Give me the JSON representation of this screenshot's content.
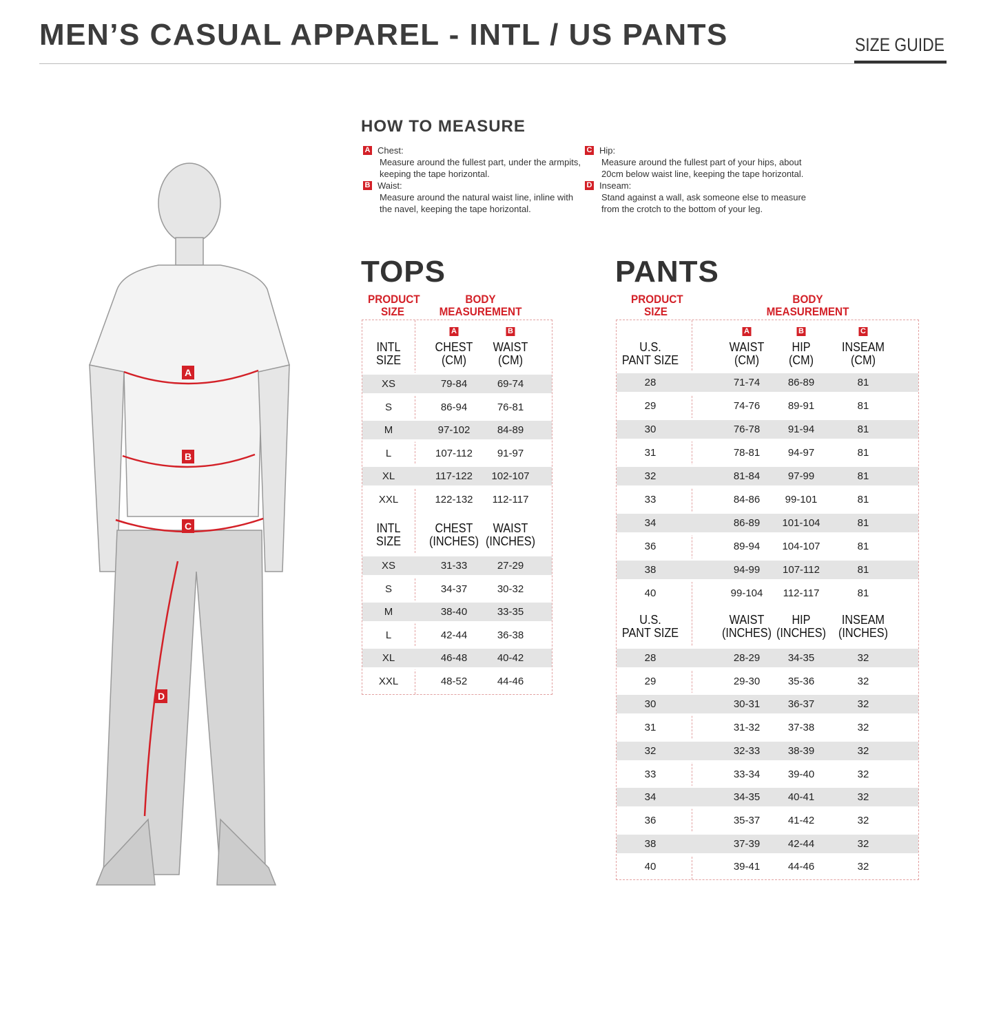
{
  "header": {
    "title": "MEN’S CASUAL APPAREL - INTL / US PANTS",
    "size_guide": "SIZE GUIDE"
  },
  "how_to_measure": {
    "title": "HOW TO MEASURE",
    "items": [
      {
        "key": "A",
        "label": "Chest:",
        "desc": "Measure around the fullest part, under the armpits, keeping the tape horizontal."
      },
      {
        "key": "B",
        "label": "Waist:",
        "desc": "Measure around the natural waist line, inline with the navel, keeping the tape horizontal."
      },
      {
        "key": "C",
        "label": "Hip:",
        "desc": "Measure around the fullest part of your hips, about 20cm below waist line, keeping the tape horizontal."
      },
      {
        "key": "D",
        "label": "Inseam:",
        "desc": "Stand against a wall, ask someone else to measure from the crotch to the bottom of your leg."
      }
    ]
  },
  "figure": {
    "markers": [
      "A",
      "B",
      "C",
      "D"
    ]
  },
  "colors": {
    "accent": "#d32027",
    "shade": "#e4e4e4"
  },
  "tops": {
    "title": "TOPS",
    "product_size": "PRODUCT\nSIZE",
    "body_measurement": "BODY\nMEASUREMENT",
    "cm": {
      "headers": [
        "INTL\nSIZE",
        "CHEST\n(CM)",
        "WAIST\n(CM)"
      ],
      "badges": [
        "A",
        "B"
      ],
      "rows": [
        [
          "XS",
          "79-84",
          "69-74"
        ],
        [
          "S",
          "86-94",
          "76-81"
        ],
        [
          "M",
          "97-102",
          "84-89"
        ],
        [
          "L",
          "107-112",
          "91-97"
        ],
        [
          "XL",
          "117-122",
          "102-107"
        ],
        [
          "XXL",
          "122-132",
          "112-117"
        ]
      ]
    },
    "inches": {
      "headers": [
        "INTL\nSIZE",
        "CHEST\n(INCHES)",
        "WAIST\n(INCHES)"
      ],
      "rows": [
        [
          "XS",
          "31-33",
          "27-29"
        ],
        [
          "S",
          "34-37",
          "30-32"
        ],
        [
          "M",
          "38-40",
          "33-35"
        ],
        [
          "L",
          "42-44",
          "36-38"
        ],
        [
          "XL",
          "46-48",
          "40-42"
        ],
        [
          "XXL",
          "48-52",
          "44-46"
        ]
      ]
    }
  },
  "pants": {
    "title": "PANTS",
    "product_size": "PRODUCT\nSIZE",
    "body_measurement": "BODY\nMEASUREMENT",
    "cm": {
      "headers": [
        "U.S.\nPANT SIZE",
        "WAIST\n(CM)",
        "HIP\n(CM)",
        "INSEAM\n(CM)"
      ],
      "badges": [
        "A",
        "B",
        "C"
      ],
      "rows": [
        [
          "28",
          "71-74",
          "86-89",
          "81"
        ],
        [
          "29",
          "74-76",
          "89-91",
          "81"
        ],
        [
          "30",
          "76-78",
          "91-94",
          "81"
        ],
        [
          "31",
          "78-81",
          "94-97",
          "81"
        ],
        [
          "32",
          "81-84",
          "97-99",
          "81"
        ],
        [
          "33",
          "84-86",
          "99-101",
          "81"
        ],
        [
          "34",
          "86-89",
          "101-104",
          "81"
        ],
        [
          "36",
          "89-94",
          "104-107",
          "81"
        ],
        [
          "38",
          "94-99",
          "107-112",
          "81"
        ],
        [
          "40",
          "99-104",
          "112-117",
          "81"
        ]
      ]
    },
    "inches": {
      "headers": [
        "U.S.\nPANT SIZE",
        "WAIST\n(INCHES)",
        "HIP\n(INCHES)",
        "INSEAM\n(INCHES)"
      ],
      "rows": [
        [
          "28",
          "28-29",
          "34-35",
          "32"
        ],
        [
          "29",
          "29-30",
          "35-36",
          "32"
        ],
        [
          "30",
          "30-31",
          "36-37",
          "32"
        ],
        [
          "31",
          "31-32",
          "37-38",
          "32"
        ],
        [
          "32",
          "32-33",
          "38-39",
          "32"
        ],
        [
          "33",
          "33-34",
          "39-40",
          "32"
        ],
        [
          "34",
          "34-35",
          "40-41",
          "32"
        ],
        [
          "36",
          "35-37",
          "41-42",
          "32"
        ],
        [
          "38",
          "37-39",
          "42-44",
          "32"
        ],
        [
          "40",
          "39-41",
          "44-46",
          "32"
        ]
      ]
    }
  }
}
